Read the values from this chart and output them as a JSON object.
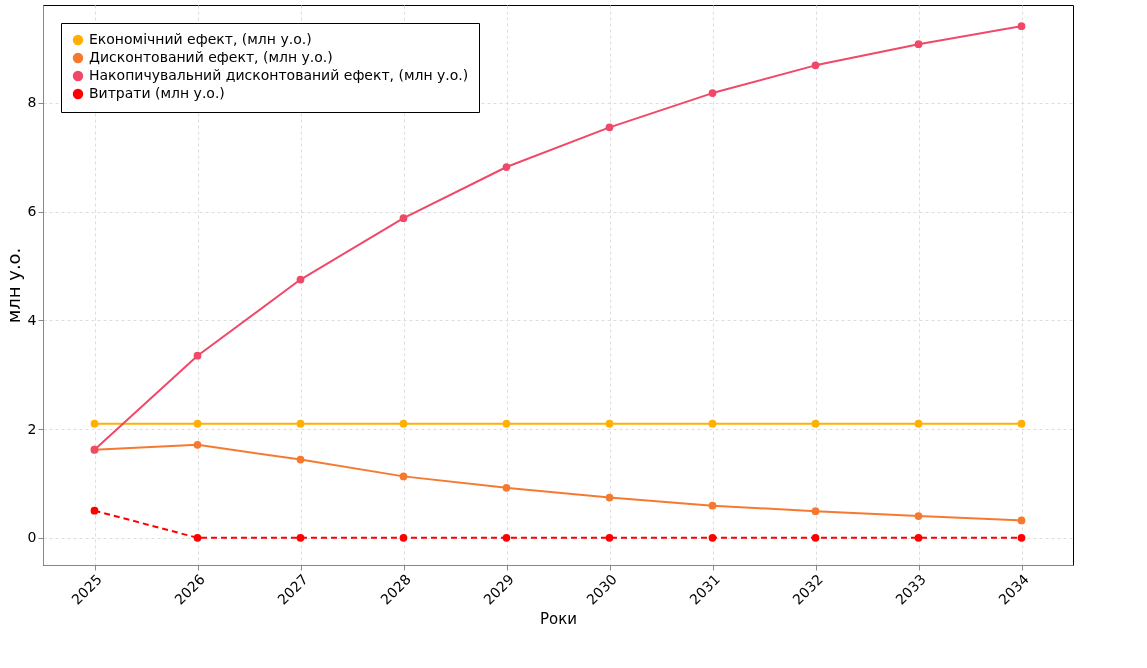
{
  "chart_data": {
    "type": "line",
    "xlabel": "Роки",
    "ylabel": "млн  у.о.",
    "categories": [
      "2025",
      "2026",
      "2027",
      "2028",
      "2029",
      "2030",
      "2031",
      "2032",
      "2033",
      "2034"
    ],
    "series": [
      {
        "name": "Економічний ефект, (млн у.о.)",
        "color": "#ffb000",
        "values": [
          2.1,
          2.1,
          2.1,
          2.1,
          2.1,
          2.1,
          2.1,
          2.1,
          2.1,
          2.1
        ]
      },
      {
        "name": "Дисконтований ефект, (млн у.о.)",
        "color": "#f57a30",
        "values": [
          1.62,
          1.71,
          1.44,
          1.13,
          0.92,
          0.74,
          0.59,
          0.49,
          0.4,
          0.32
        ]
      },
      {
        "name": "Накопичувальний дисконтований ефект, (млн у.о.)",
        "color": "#f04868",
        "values": [
          1.62,
          3.35,
          4.75,
          5.88,
          6.82,
          7.55,
          8.18,
          8.69,
          9.08,
          9.41
        ]
      },
      {
        "name": "Витрати (млн у.о.)",
        "color": "#ff0000",
        "line_style": "dashed",
        "values": [
          0.5,
          0,
          0,
          0,
          0,
          0,
          0,
          0,
          0,
          0
        ]
      }
    ],
    "ylim": [
      -0.5,
      9.8
    ],
    "yticks": [
      0,
      2,
      4,
      6,
      8
    ],
    "grid": true,
    "legend": "top left",
    "marker": "circle",
    "line_style": "solid"
  }
}
